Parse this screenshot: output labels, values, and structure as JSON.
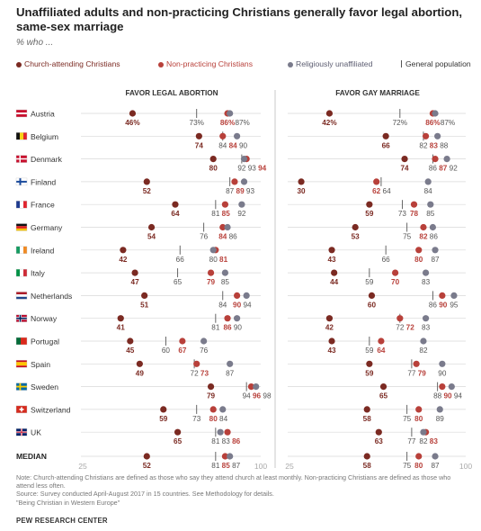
{
  "title": "Unaffiliated adults and non-practicing Christians generally favor legal abortion, same-sex marriage",
  "subtitle": "% who ...",
  "legend": {
    "church": "Church-attending Christians",
    "nonpracticing": "Non-practicing Christians",
    "unaffiliated": "Religiously unaffiliated",
    "general": "General population"
  },
  "colors": {
    "church": "#7b2a22",
    "nonpracticing": "#b8403a",
    "unaffiliated": "#7a7b8c",
    "general": "#555555",
    "rule": "#d8d8d8"
  },
  "footer": {
    "note": "Note: Church-attending Christians are defined as those who say they attend church at least monthly. Non-practicing Christians are defined as those who attend less often.",
    "source": "Source: Survey conducted April-August 2017 in 15 countries. See Methodology for details.",
    "report": "\"Being Christian in Western Europe\"",
    "brand": "PEW RESEARCH CENTER"
  },
  "chart_data": {
    "type": "scatter",
    "xlim": [
      25,
      100
    ],
    "axis_ticks": [
      "25",
      "100"
    ],
    "countries": [
      {
        "name": "Austria",
        "flag": "austria-flag"
      },
      {
        "name": "Belgium",
        "flag": "belgium-flag"
      },
      {
        "name": "Denmark",
        "flag": "denmark-flag"
      },
      {
        "name": "Finland",
        "flag": "finland-flag"
      },
      {
        "name": "France",
        "flag": "france-flag"
      },
      {
        "name": "Germany",
        "flag": "germany-flag"
      },
      {
        "name": "Ireland",
        "flag": "ireland-flag"
      },
      {
        "name": "Italy",
        "flag": "italy-flag"
      },
      {
        "name": "Netherlands",
        "flag": "netherlands-flag"
      },
      {
        "name": "Norway",
        "flag": "norway-flag"
      },
      {
        "name": "Portugal",
        "flag": "portugal-flag"
      },
      {
        "name": "Spain",
        "flag": "spain-flag"
      },
      {
        "name": "Sweden",
        "flag": "sweden-flag"
      },
      {
        "name": "Switzerland",
        "flag": "switzerland-flag"
      },
      {
        "name": "UK",
        "flag": "uk-flag"
      }
    ],
    "median_label": "MEDIAN",
    "panels": [
      {
        "title": "FAVOR LEGAL ABORTION",
        "general_labels_suffix": [
          "73%",
          null
        ],
        "rows": [
          {
            "church": 46,
            "church_label": "46%",
            "nonpracticing": 86,
            "nonpracticing_label": "86%",
            "unaffiliated": 87,
            "unaffiliated_label": "87%",
            "general": 73,
            "general_label": "73%"
          },
          {
            "church": 74,
            "church_label": "74",
            "nonpracticing": 84,
            "nonpracticing_label": "84",
            "unaffiliated": 90,
            "unaffiliated_label": "90",
            "general": 84,
            "general_label": "84"
          },
          {
            "church": 80,
            "church_label": "80",
            "nonpracticing": 94,
            "nonpracticing_label": "94",
            "unaffiliated": 93,
            "unaffiliated_label": "93",
            "general": 92,
            "general_label": "92"
          },
          {
            "church": 52,
            "church_label": "52",
            "nonpracticing": 89,
            "nonpracticing_label": "89",
            "unaffiliated": 93,
            "unaffiliated_label": "93",
            "general": 87,
            "general_label": "87"
          },
          {
            "church": 64,
            "church_label": "64",
            "nonpracticing": 85,
            "nonpracticing_label": "85",
            "unaffiliated": 92,
            "unaffiliated_label": "92",
            "general": 81,
            "general_label": "81"
          },
          {
            "church": 54,
            "church_label": "54",
            "nonpracticing": 84,
            "nonpracticing_label": "84",
            "unaffiliated": 86,
            "unaffiliated_label": "86",
            "general": 76,
            "general_label": "76"
          },
          {
            "church": 42,
            "church_label": "42",
            "nonpracticing": 81,
            "nonpracticing_label": "81",
            "unaffiliated": 80,
            "unaffiliated_label": "80",
            "general": 66,
            "general_label": "66"
          },
          {
            "church": 47,
            "church_label": "47",
            "nonpracticing": 79,
            "nonpracticing_label": "79",
            "unaffiliated": 85,
            "unaffiliated_label": "85",
            "general": 65,
            "general_label": "65"
          },
          {
            "church": 51,
            "church_label": "51",
            "nonpracticing": 90,
            "nonpracticing_label": "90",
            "unaffiliated": 94,
            "unaffiliated_label": "94",
            "general": 84,
            "general_label": "84"
          },
          {
            "church": 41,
            "church_label": "41",
            "nonpracticing": 86,
            "nonpracticing_label": "86",
            "unaffiliated": 90,
            "unaffiliated_label": "90",
            "general": 81,
            "general_label": "81"
          },
          {
            "church": 45,
            "church_label": "45",
            "nonpracticing": 67,
            "nonpracticing_label": "67",
            "unaffiliated": 76,
            "unaffiliated_label": "76",
            "general": 60,
            "general_label": "60"
          },
          {
            "church": 49,
            "church_label": "49",
            "nonpracticing": 73,
            "nonpracticing_label": "73",
            "unaffiliated": 87,
            "unaffiliated_label": "87",
            "general": 72,
            "general_label": "72"
          },
          {
            "church": 79,
            "church_label": "79",
            "nonpracticing": 96,
            "nonpracticing_label": "96",
            "unaffiliated": 98,
            "unaffiliated_label": "98",
            "general": 94,
            "general_label": "94"
          },
          {
            "church": 59,
            "church_label": "59",
            "nonpracticing": 80,
            "nonpracticing_label": "80",
            "unaffiliated": 84,
            "unaffiliated_label": "84",
            "general": 73,
            "general_label": "73"
          },
          {
            "church": 65,
            "church_label": "65",
            "nonpracticing": 86,
            "nonpracticing_label": "86",
            "unaffiliated": 83,
            "unaffiliated_label": "83",
            "general": 81,
            "general_label": "81"
          }
        ],
        "median": {
          "church": 52,
          "church_label": "52",
          "nonpracticing": 85,
          "nonpracticing_label": "85",
          "unaffiliated": 87,
          "unaffiliated_label": "87",
          "general": 81,
          "general_label": "81"
        }
      },
      {
        "title": "FAVOR GAY MARRIAGE",
        "rows": [
          {
            "church": 42,
            "church_label": "42%",
            "nonpracticing": 86,
            "nonpracticing_label": "86%",
            "unaffiliated": 87,
            "unaffiliated_label": "87%",
            "general": 72,
            "general_label": "72%"
          },
          {
            "church": 66,
            "church_label": "66",
            "nonpracticing": 83,
            "nonpracticing_label": "83",
            "unaffiliated": 88,
            "unaffiliated_label": "88",
            "general": 82,
            "general_label": "82"
          },
          {
            "church": 74,
            "church_label": "74",
            "nonpracticing": 87,
            "nonpracticing_label": "87",
            "unaffiliated": 92,
            "unaffiliated_label": "92",
            "general": 86,
            "general_label": "86"
          },
          {
            "church": 30,
            "church_label": "30",
            "nonpracticing": 62,
            "nonpracticing_label": "62",
            "unaffiliated": 84,
            "unaffiliated_label": "84",
            "general": 64,
            "general_label": "64"
          },
          {
            "church": 59,
            "church_label": "59",
            "nonpracticing": 78,
            "nonpracticing_label": "78",
            "unaffiliated": 85,
            "unaffiliated_label": "85",
            "general": 73,
            "general_label": "73"
          },
          {
            "church": 53,
            "church_label": "53",
            "nonpracticing": 82,
            "nonpracticing_label": "82",
            "unaffiliated": 86,
            "unaffiliated_label": "86",
            "general": 75,
            "general_label": "75"
          },
          {
            "church": 43,
            "church_label": "43",
            "nonpracticing": 80,
            "nonpracticing_label": "80",
            "unaffiliated": 87,
            "unaffiliated_label": "87",
            "general": 66,
            "general_label": "66"
          },
          {
            "church": 44,
            "church_label": "44",
            "nonpracticing": 70,
            "nonpracticing_label": "70",
            "unaffiliated": 83,
            "unaffiliated_label": "83",
            "general": 59,
            "general_label": "59"
          },
          {
            "church": 60,
            "church_label": "60",
            "nonpracticing": 90,
            "nonpracticing_label": "90",
            "unaffiliated": 95,
            "unaffiliated_label": "95",
            "general": 86,
            "general_label": "86"
          },
          {
            "church": 42,
            "church_label": "42",
            "nonpracticing": 72,
            "nonpracticing_label": "72",
            "unaffiliated": 83,
            "unaffiliated_label": "83",
            "general": 72,
            "general_label": "72"
          },
          {
            "church": 43,
            "church_label": "43",
            "nonpracticing": 64,
            "nonpracticing_label": "64",
            "unaffiliated": 82,
            "unaffiliated_label": "82",
            "general": 59,
            "general_label": "59"
          },
          {
            "church": 59,
            "church_label": "59",
            "nonpracticing": 79,
            "nonpracticing_label": "79",
            "unaffiliated": 90,
            "unaffiliated_label": "90",
            "general": 77,
            "general_label": "77"
          },
          {
            "church": 65,
            "church_label": "65",
            "nonpracticing": 90,
            "nonpracticing_label": "90",
            "unaffiliated": 94,
            "unaffiliated_label": "94",
            "general": 88,
            "general_label": "88"
          },
          {
            "church": 58,
            "church_label": "58",
            "nonpracticing": 80,
            "nonpracticing_label": "80",
            "unaffiliated": 89,
            "unaffiliated_label": "89",
            "general": 75,
            "general_label": "75"
          },
          {
            "church": 63,
            "church_label": "63",
            "nonpracticing": 83,
            "nonpracticing_label": "83",
            "unaffiliated": 82,
            "unaffiliated_label": "82",
            "general": 77,
            "general_label": "77"
          }
        ],
        "median": {
          "church": 58,
          "church_label": "58",
          "nonpracticing": 80,
          "nonpracticing_label": "80",
          "unaffiliated": 87,
          "unaffiliated_label": "87",
          "general": 75,
          "general_label": "75"
        }
      }
    ]
  }
}
